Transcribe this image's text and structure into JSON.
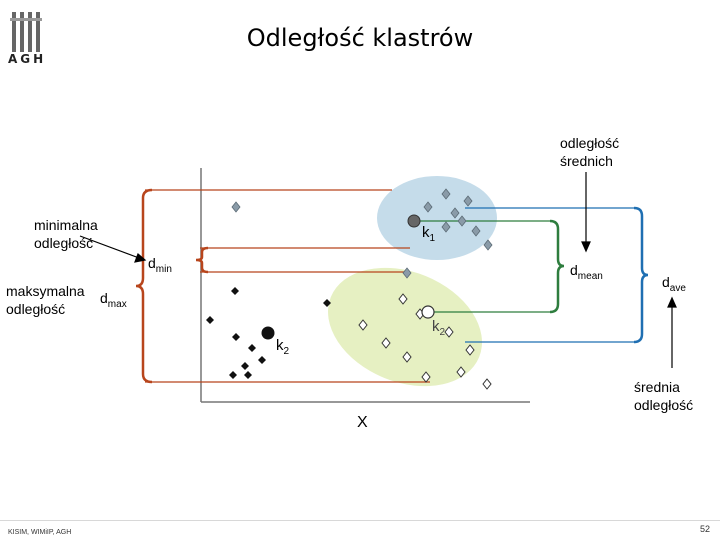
{
  "slide": {
    "title": "Odległość klastrów",
    "logo_text": "AGH",
    "footer_left": "KISIM, WIMiIP, AGH",
    "page_number": "52"
  },
  "labels": {
    "minimal": [
      "minimalna",
      "odległość"
    ],
    "maximal": [
      "maksymalna",
      "odległość"
    ],
    "means": [
      "odległość",
      "średnich"
    ],
    "average": [
      "średnia",
      "odległość"
    ],
    "axis_x": "X"
  },
  "symbols": {
    "d_min": {
      "base": "d",
      "sub": "min"
    },
    "d_max": {
      "base": "d",
      "sub": "max"
    },
    "d_mean": {
      "base": "d",
      "sub": "mean"
    },
    "d_ave": {
      "base": "d",
      "sub": "ave"
    },
    "k1": {
      "base": "k",
      "sub": "1"
    },
    "k2": {
      "base": "k",
      "sub": "2"
    }
  },
  "colors": {
    "cluster1_fill": "#c5dcea",
    "cluster2_fill": "#e6f0c2",
    "bracket_red": "#b8451c",
    "bracket_green": "#2e7d3e",
    "bracket_blue": "#1f6fb2",
    "axis": "#777777"
  }
}
